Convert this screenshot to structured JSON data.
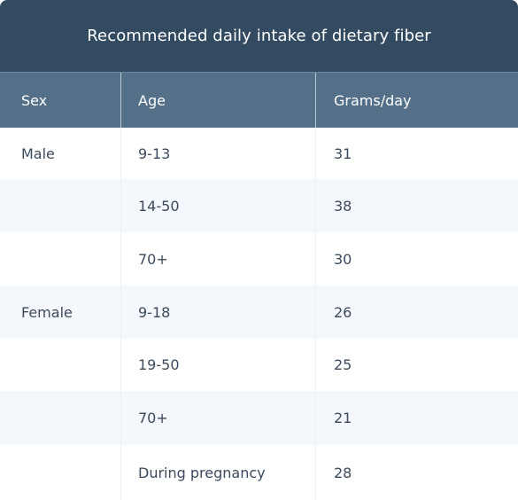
{
  "table": {
    "title": "Recommended daily intake of dietary fiber",
    "columns": [
      "Sex",
      "Age",
      "Grams/day"
    ],
    "rows": [
      {
        "sex": "Male",
        "age": "9-13",
        "grams": "31"
      },
      {
        "sex": "",
        "age": "14-50",
        "grams": "38"
      },
      {
        "sex": "",
        "age": "70+",
        "grams": "30"
      },
      {
        "sex": "Female",
        "age": "9-18",
        "grams": "26"
      },
      {
        "sex": "",
        "age": "19-50",
        "grams": "25"
      },
      {
        "sex": "",
        "age": "70+",
        "grams": "21"
      },
      {
        "sex": "",
        "age": "During pregnancy",
        "grams": "28"
      }
    ]
  },
  "colors": {
    "title_background": "#334b61",
    "header_background": "#546f88",
    "stripe_background": "#f4f7fb",
    "body_text": "#3b4a5c"
  }
}
